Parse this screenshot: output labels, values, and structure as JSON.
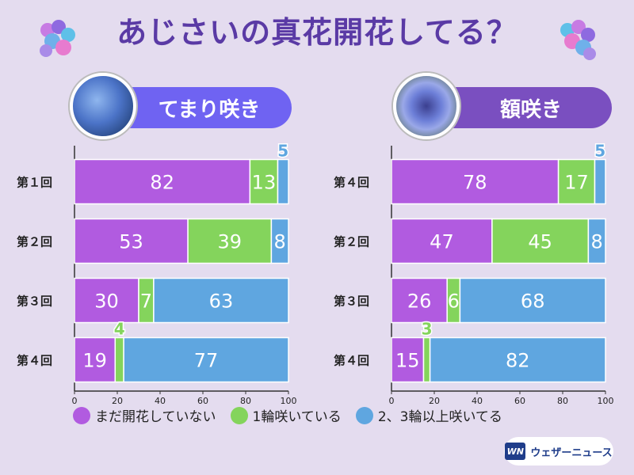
{
  "title": "あじさいの真花開花してる？",
  "colors": {
    "not_open": "#b15be0",
    "one_open": "#84d45c",
    "many_open": "#5fa6e0",
    "title": "#5a3aa5"
  },
  "legend": [
    {
      "label": "まだ開花していない",
      "color": "#b15be0"
    },
    {
      "label": "1輪咲いている",
      "color": "#84d45c"
    },
    {
      "label": "2、3輪以上咲いてる",
      "color": "#5fa6e0"
    }
  ],
  "logo": {
    "mark": "WN",
    "text": "ウェザーニュース"
  },
  "chart_data": [
    {
      "type": "bar",
      "stacked": true,
      "orientation": "horizontal",
      "title": "てまり咲き",
      "categories": [
        "第１回",
        "第２回",
        "第３回",
        "第４回"
      ],
      "series": [
        {
          "name": "まだ開花していない",
          "values": [
            82,
            53,
            30,
            19
          ]
        },
        {
          "name": "1輪咲いている",
          "values": [
            13,
            39,
            7,
            4
          ]
        },
        {
          "name": "2、3輪以上咲いてる",
          "values": [
            5,
            8,
            63,
            77
          ]
        }
      ],
      "xlim": [
        0,
        100
      ],
      "xticks": [
        "0",
        "20",
        "40",
        "60",
        "80",
        "100"
      ]
    },
    {
      "type": "bar",
      "stacked": true,
      "orientation": "horizontal",
      "title": "額咲き",
      "categories": [
        "第４回",
        "第２回",
        "第３回",
        "第４回"
      ],
      "series": [
        {
          "name": "まだ開花していない",
          "values": [
            78,
            47,
            26,
            15
          ]
        },
        {
          "name": "1輪咲いている",
          "values": [
            17,
            45,
            6,
            3
          ]
        },
        {
          "name": "2、3輪以上咲いてる",
          "values": [
            5,
            8,
            68,
            82
          ]
        }
      ],
      "xlim": [
        0,
        100
      ],
      "xticks": [
        "0",
        "20",
        "40",
        "60",
        "80",
        "100"
      ]
    }
  ]
}
